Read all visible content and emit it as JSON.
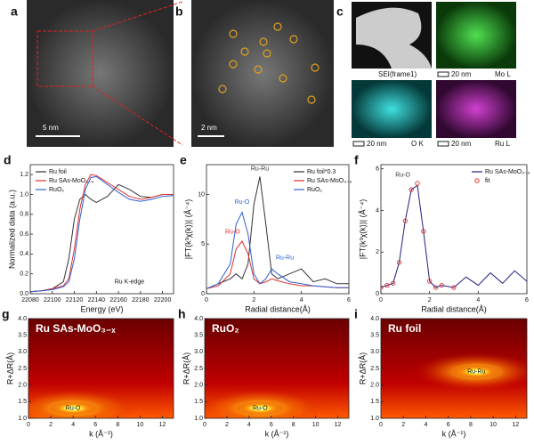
{
  "panels": {
    "a": {
      "label": "a",
      "scale": "5 nm"
    },
    "b": {
      "label": "b",
      "scale": "2 nm"
    },
    "c": {
      "label": "c",
      "tiles": [
        {
          "name": "SEI(frame1)"
        },
        {
          "name": "Mo L",
          "scale": "20 nm"
        },
        {
          "name": "O K",
          "scale": "20 nm"
        },
        {
          "name": "Ru L",
          "scale": "20 nm"
        }
      ]
    }
  },
  "chart_data": [
    {
      "type": "line",
      "label": "d",
      "xlabel": "Energy (eV)",
      "ylabel": "Normalized data (a.u.)",
      "x": [
        22080,
        22090,
        22100,
        22110,
        22115,
        22120,
        22125,
        22130,
        22135,
        22140,
        22150,
        22160,
        22170,
        22180,
        22190,
        22200,
        22210
      ],
      "series": [
        {
          "name": "Ru foil",
          "color": "#333333",
          "values": [
            0.02,
            0.03,
            0.05,
            0.12,
            0.35,
            0.75,
            0.95,
            1.0,
            0.95,
            0.92,
            0.98,
            1.1,
            1.05,
            0.98,
            0.97,
            1.0,
            1.0
          ]
        },
        {
          "name": "Ru SAs-MoO₃₋ₓ",
          "color": "#e03030",
          "values": [
            0.02,
            0.03,
            0.05,
            0.08,
            0.15,
            0.45,
            0.85,
            1.1,
            1.2,
            1.19,
            1.12,
            1.05,
            0.98,
            0.95,
            0.97,
            1.0,
            1.0
          ]
        },
        {
          "name": "RuO₂",
          "color": "#3060d0",
          "values": [
            0.02,
            0.03,
            0.04,
            0.07,
            0.12,
            0.35,
            0.75,
            1.05,
            1.17,
            1.18,
            1.1,
            1.02,
            0.95,
            0.93,
            0.95,
            0.98,
            0.99
          ]
        }
      ],
      "xlim": [
        22080,
        22210
      ],
      "xticks": [
        22080,
        22100,
        22120,
        22140,
        22160,
        22180,
        22200
      ],
      "ylim": [
        0,
        1.3
      ],
      "yticks": [
        {
          "value": 0,
          "label": "0.0"
        },
        0.2,
        0.4,
        0.6,
        0.8,
        {
          "value": 1,
          "label": "1.0"
        },
        1.2
      ],
      "legend": "upper left",
      "annotations": [
        {
          "text": "Ru K-edge",
          "x": 22170,
          "y": 0.12
        }
      ]
    },
    {
      "type": "line",
      "label": "e",
      "xlabel": "Radial distance(Å)",
      "ylabel": "|FT(k³χ(k))| (Å⁻⁴)",
      "x": [
        0,
        0.5,
        1,
        1.25,
        1.5,
        1.75,
        2,
        2.25,
        2.5,
        2.75,
        3,
        3.5,
        4,
        4.5,
        5,
        5.5,
        6
      ],
      "series": [
        {
          "name": "Ru foil*0.3",
          "color": "#333333",
          "values": [
            0.5,
            1,
            1.5,
            2,
            1.5,
            3,
            9,
            11.8,
            7,
            2,
            1.5,
            2,
            2.5,
            1.2,
            1.5,
            1,
            1
          ]
        },
        {
          "name": "Ru SAs-MoO₃₋ₓ",
          "color": "#e03030",
          "values": [
            0.5,
            0.8,
            2,
            4.5,
            5.3,
            4,
            1.5,
            1,
            1.2,
            1.5,
            1.3,
            1,
            0.8,
            0.8,
            0.7,
            0.6,
            0.6
          ]
        },
        {
          "name": "RuO₂",
          "color": "#3060d0",
          "values": [
            0.5,
            1,
            3,
            7,
            8.2,
            6,
            2,
            1,
            1.5,
            2.5,
            2,
            1.2,
            1,
            0.8,
            0.7,
            0.6,
            0.6
          ]
        }
      ],
      "xlim": [
        0,
        6
      ],
      "xticks": [
        0,
        2,
        4,
        6
      ],
      "ylim": [
        0,
        13
      ],
      "yticks": [
        0,
        5,
        10
      ],
      "legend": "upper right",
      "annotations": [
        {
          "text": "Ru-Ru",
          "x": 2.25,
          "y": 12.6,
          "color": "#333333"
        },
        {
          "text": "Ru-O",
          "x": 1.5,
          "y": 9.2,
          "color": "#3060d0"
        },
        {
          "text": "Ru-O",
          "x": 1.1,
          "y": 6.2,
          "color": "#e03030"
        },
        {
          "text": "Ru-Ru",
          "x": 3.3,
          "y": 3.6,
          "color": "#3060d0"
        }
      ]
    },
    {
      "type": "line",
      "label": "f",
      "xlabel": "Radial distance(Å)",
      "ylabel": "|FT(k³χ(k))| (Å⁻⁴)",
      "x": [
        0,
        0.25,
        0.5,
        0.75,
        1,
        1.25,
        1.5,
        1.75,
        2,
        2.25,
        2.5,
        3,
        3.5,
        4,
        4.5,
        5,
        5.5,
        6
      ],
      "series": [
        {
          "name": "Ru SAs-MoO₃₋ₓ",
          "color": "#202080",
          "values": [
            0.3,
            0.4,
            0.5,
            1.5,
            3.5,
            5.0,
            5.2,
            3,
            0.6,
            0.3,
            0.4,
            0.3,
            0.8,
            0.4,
            1.0,
            0.5,
            1.1,
            0.6
          ]
        },
        {
          "name": "fit",
          "color": "#e03030",
          "style": "markers",
          "values": [
            0.3,
            0.4,
            0.5,
            1.5,
            3.5,
            5.0,
            5.3,
            3,
            0.6,
            0.3,
            0.4,
            0.3,
            null,
            null,
            null,
            null,
            null,
            null
          ]
        }
      ],
      "xlim": [
        0,
        6
      ],
      "xticks": [
        0,
        2,
        4,
        6
      ],
      "ylim": [
        0,
        6.2
      ],
      "yticks": [
        0,
        2,
        4,
        6
      ],
      "legend": "upper right",
      "annotations": [
        {
          "text": "Ru-O",
          "x": 0.9,
          "y": 5.7,
          "color": "#333333"
        }
      ]
    },
    {
      "type": "contour",
      "label": "g",
      "title": "Ru SAs-MoO₃₋ₓ",
      "xlabel": "k (Å⁻¹)",
      "ylabel": "R+ΔR(Å)",
      "xlim": [
        0,
        13
      ],
      "xticks": [
        0,
        2,
        4,
        6,
        8,
        10,
        12
      ],
      "ylim": [
        1,
        4
      ],
      "yticks": [
        {
          "value": 1,
          "label": "1.0"
        },
        1.5,
        {
          "value": 2,
          "label": "2.0"
        },
        2.5,
        {
          "value": 3,
          "label": "3.0"
        },
        3.5,
        {
          "value": 4,
          "label": "4.0"
        }
      ],
      "annotations": [
        {
          "text": "Ru-O",
          "x": 4,
          "y": 1.3
        }
      ]
    },
    {
      "type": "contour",
      "label": "h",
      "title": "RuO₂",
      "xlabel": "k (Å⁻¹)",
      "ylabel": "R+ΔR(Å)",
      "xlim": [
        0,
        13
      ],
      "xticks": [
        0,
        2,
        4,
        6,
        8,
        10,
        12
      ],
      "ylim": [
        1,
        4
      ],
      "yticks": [
        {
          "value": 1,
          "label": "1.0"
        },
        1.5,
        {
          "value": 2,
          "label": "2.0"
        },
        2.5,
        {
          "value": 3,
          "label": "3.0"
        },
        3.5,
        {
          "value": 4,
          "label": "4.0"
        }
      ],
      "annotations": [
        {
          "text": "Ru-O",
          "x": 5,
          "y": 1.3
        }
      ]
    },
    {
      "type": "contour",
      "label": "i",
      "title": "Ru foil",
      "xlabel": "k (Å⁻¹)",
      "ylabel": "R+ΔR(Å)",
      "xlim": [
        0,
        13
      ],
      "xticks": [
        0,
        2,
        4,
        6,
        8,
        10,
        12
      ],
      "ylim": [
        1,
        4
      ],
      "yticks": [
        {
          "value": 1,
          "label": "1.0"
        },
        1.5,
        {
          "value": 2,
          "label": "2.0"
        },
        2.5,
        {
          "value": 3,
          "label": "3.0"
        },
        3.5,
        {
          "value": 4,
          "label": "4.0"
        }
      ],
      "annotations": [
        {
          "text": "Ru-Ru",
          "x": 8.5,
          "y": 2.4
        }
      ]
    }
  ]
}
